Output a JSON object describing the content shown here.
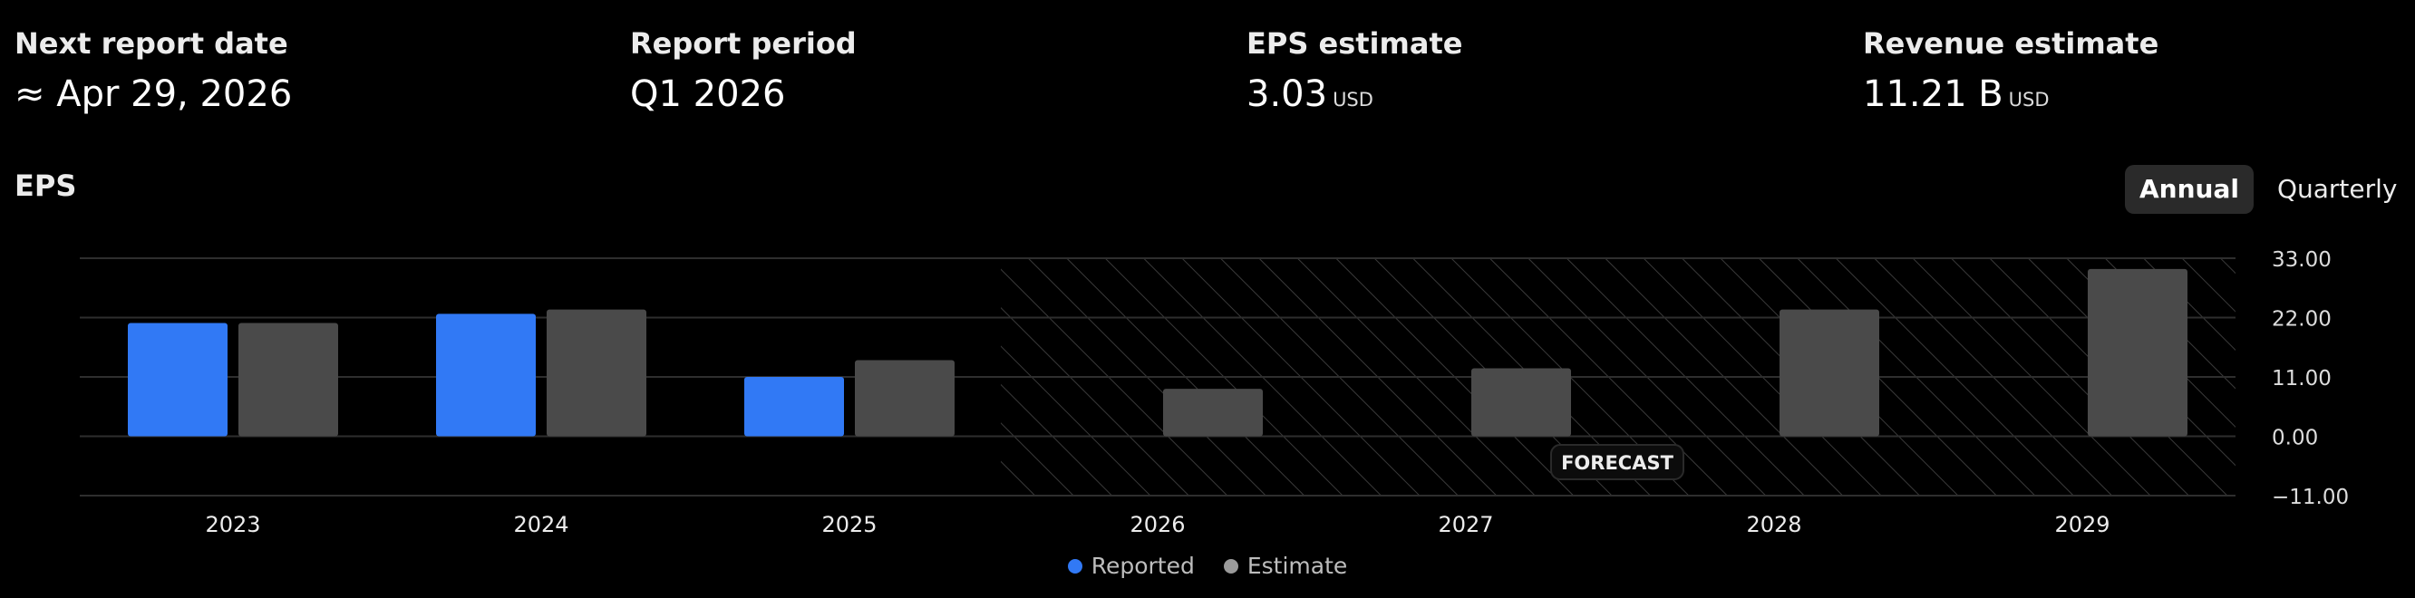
{
  "stats": [
    {
      "label": "Next report date",
      "value": "≈ Apr 29, 2026",
      "unit": ""
    },
    {
      "label": "Report period",
      "value": "Q1 2026",
      "unit": ""
    },
    {
      "label": "EPS estimate",
      "value": "3.03",
      "unit": "USD"
    },
    {
      "label": "Revenue estimate",
      "value": "11.21 B",
      "unit": "USD"
    }
  ],
  "chart_title": "EPS",
  "toggles": {
    "annual": "Annual",
    "quarterly": "Quarterly",
    "selected": "Annual"
  },
  "forecast_label": "FORECAST",
  "colors": {
    "reported": "#3179f5",
    "estimate": "#4a4a4a",
    "grid": "#2e2e2e"
  },
  "chart_data": {
    "type": "bar",
    "categories": [
      "2023",
      "2024",
      "2025",
      "2026",
      "2027",
      "2028",
      "2029"
    ],
    "series": [
      {
        "name": "Reported",
        "values": [
          21.0,
          22.7,
          11.0,
          null,
          null,
          null,
          null
        ]
      },
      {
        "name": "Estimate",
        "values": [
          21.0,
          23.5,
          14.1,
          8.8,
          12.6,
          23.5,
          31.0
        ]
      }
    ],
    "yticks": [
      33,
      22,
      11,
      0,
      -11
    ],
    "ytick_labels": [
      "33.00",
      "22.00",
      "11.00",
      "0.00",
      "−11.00"
    ],
    "ylim": [
      -11,
      33
    ],
    "forecast_start_category": "2026",
    "grid": true,
    "legend_position": "bottom-center"
  }
}
